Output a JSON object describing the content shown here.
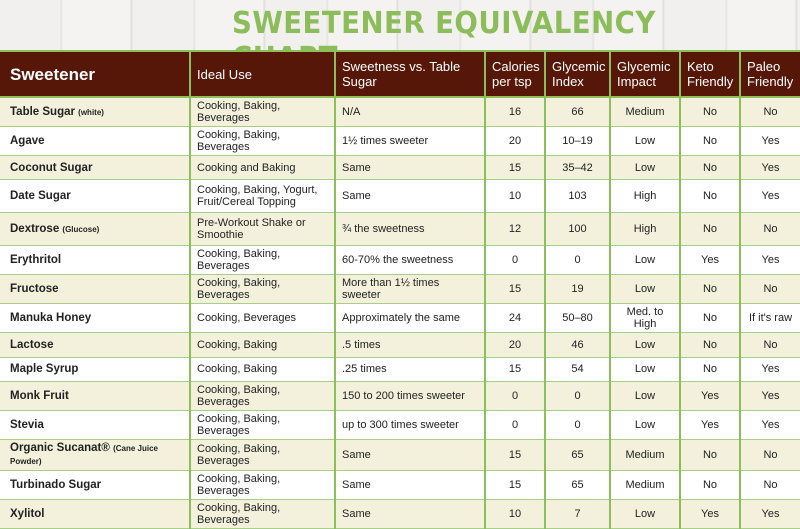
{
  "title": "SWEETENER EQUIVALENCY CHART",
  "headers": [
    "Sweetener",
    "Ideal Use",
    "Sweetness vs. Table Sugar",
    "Calories per tsp",
    "Glycemic Index",
    "Glycemic Impact",
    "Keto Friendly",
    "Paleo Friendly"
  ],
  "rows": [
    {
      "name": "Table Sugar",
      "note": "(white)",
      "use": "Cooking, Baking, Beverages",
      "sweetness": "N/A",
      "calories": "16",
      "gi": "66",
      "impact": "Medium",
      "keto": "No",
      "paleo": "No"
    },
    {
      "name": "Agave",
      "note": "",
      "use": "Cooking, Baking, Beverages",
      "sweetness": "1½ times sweeter",
      "calories": "20",
      "gi": "10–19",
      "impact": "Low",
      "keto": "No",
      "paleo": "Yes"
    },
    {
      "name": "Coconut Sugar",
      "note": "",
      "use": "Cooking and Baking",
      "sweetness": "Same",
      "calories": "15",
      "gi": "35–42",
      "impact": "Low",
      "keto": "No",
      "paleo": "Yes"
    },
    {
      "name": "Date Sugar",
      "note": "",
      "use": "Cooking, Baking, Yogurt, Fruit/Cereal Topping",
      "sweetness": "Same",
      "calories": "10",
      "gi": "103",
      "impact": "High",
      "keto": "No",
      "paleo": "Yes"
    },
    {
      "name": "Dextrose",
      "note": "(Glucose)",
      "use": "Pre-Workout Shake or Smoothie",
      "sweetness": "¾ the sweetness",
      "calories": "12",
      "gi": "100",
      "impact": "High",
      "keto": "No",
      "paleo": "No"
    },
    {
      "name": "Erythritol",
      "note": "",
      "use": "Cooking, Baking, Beverages",
      "sweetness": "60-70% the sweetness",
      "calories": "0",
      "gi": "0",
      "impact": "Low",
      "keto": "Yes",
      "paleo": "Yes"
    },
    {
      "name": "Fructose",
      "note": "",
      "use": "Cooking, Baking, Beverages",
      "sweetness": "More than 1½ times sweeter",
      "calories": "15",
      "gi": "19",
      "impact": "Low",
      "keto": "No",
      "paleo": "No"
    },
    {
      "name": "Manuka Honey",
      "note": "",
      "use": "Cooking, Beverages",
      "sweetness": "Approximately the same",
      "calories": "24",
      "gi": "50–80",
      "impact": "Med. to High",
      "keto": "No",
      "paleo": "If it's raw"
    },
    {
      "name": "Lactose",
      "note": "",
      "use": "Cooking, Baking",
      "sweetness": ".5 times",
      "calories": "20",
      "gi": "46",
      "impact": "Low",
      "keto": "No",
      "paleo": "No"
    },
    {
      "name": "Maple Syrup",
      "note": "",
      "use": "Cooking, Baking",
      "sweetness": ".25 times",
      "calories": "15",
      "gi": "54",
      "impact": "Low",
      "keto": "No",
      "paleo": "Yes"
    },
    {
      "name": "Monk Fruit",
      "note": "",
      "use": "Cooking, Baking, Beverages",
      "sweetness": "150 to 200 times sweeter",
      "calories": "0",
      "gi": "0",
      "impact": "Low",
      "keto": "Yes",
      "paleo": "Yes"
    },
    {
      "name": "Stevia",
      "note": "",
      "use": "Cooking, Baking, Beverages",
      "sweetness": "up to 300 times sweeter",
      "calories": "0",
      "gi": "0",
      "impact": "Low",
      "keto": "Yes",
      "paleo": "Yes"
    },
    {
      "name": "Organic Sucanat®",
      "note": "(Cane Juice Powder)",
      "use": "Cooking, Baking, Beverages",
      "sweetness": "Same",
      "calories": "15",
      "gi": "65",
      "impact": "Medium",
      "keto": "No",
      "paleo": "No"
    },
    {
      "name": "Turbinado Sugar",
      "note": "",
      "use": "Cooking, Baking, Beverages",
      "sweetness": "Same",
      "calories": "15",
      "gi": "65",
      "impact": "Medium",
      "keto": "No",
      "paleo": "No"
    },
    {
      "name": "Xylitol",
      "note": "",
      "use": "Cooking, Baking, Beverages",
      "sweetness": "Same",
      "calories": "10",
      "gi": "7",
      "impact": "Low",
      "keto": "Yes",
      "paleo": "Yes"
    }
  ],
  "colors": {
    "title": "#8cbd5a",
    "header_bg": "#561708",
    "grid": "#8cbf5a",
    "row_alt": "#f3f1dc"
  }
}
